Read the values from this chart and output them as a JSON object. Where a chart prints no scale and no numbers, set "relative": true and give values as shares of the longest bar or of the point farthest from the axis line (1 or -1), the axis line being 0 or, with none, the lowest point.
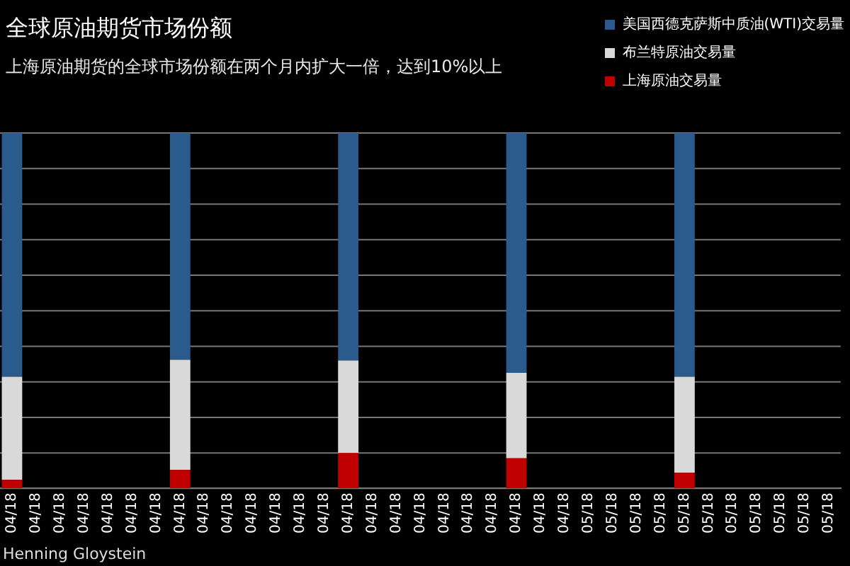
{
  "chart_data": {
    "type": "bar",
    "title": "全球原油期货市场份额",
    "subtitle": "上海原油期货的全球市场份额在两个月内扩大一倍，达到10%以上",
    "stacked": true,
    "relative": true,
    "grid": "y",
    "legend": "top right",
    "annotations": [
      "Henning Gloystein"
    ],
    "categories": [
      "04/18",
      "04/18",
      "04/18",
      "04/18",
      "04/18",
      "04/18",
      "04/18",
      "04/18",
      "04/18",
      "04/18",
      "04/18",
      "04/18",
      "04/18",
      "04/18",
      "04/18",
      "04/18",
      "04/18",
      "04/18",
      "04/18",
      "04/18",
      "04/18",
      "04/18",
      "04/18",
      "04/18",
      "05/18",
      "05/18",
      "05/18",
      "05/18",
      "05/18",
      "05/18",
      "05/18",
      "05/18",
      "05/18",
      "05/18",
      "05/18"
    ],
    "series": [
      {
        "name": "上海原油交易量",
        "color": "#c00000",
        "values": [
          0.024,
          null,
          null,
          null,
          null,
          null,
          null,
          0.052,
          null,
          null,
          null,
          null,
          null,
          null,
          0.1,
          null,
          null,
          null,
          null,
          null,
          null,
          0.085,
          null,
          null,
          null,
          null,
          null,
          null,
          0.044,
          null,
          null,
          null,
          null,
          null,
          null
        ]
      },
      {
        "name": "布兰特原油交易量",
        "color": "#d9d9d9",
        "values": [
          0.29,
          null,
          null,
          null,
          null,
          null,
          null,
          0.31,
          null,
          null,
          null,
          null,
          null,
          null,
          0.26,
          null,
          null,
          null,
          null,
          null,
          null,
          0.24,
          null,
          null,
          null,
          null,
          null,
          null,
          0.27,
          null,
          null,
          null,
          null,
          null,
          null
        ]
      },
      {
        "name": "美国西德克萨斯中质油(WTI)交易量",
        "color": "#2b5b8c",
        "values": [
          0.686,
          null,
          null,
          null,
          null,
          null,
          null,
          0.638,
          null,
          null,
          null,
          null,
          null,
          null,
          0.64,
          null,
          null,
          null,
          null,
          null,
          null,
          0.675,
          null,
          null,
          null,
          null,
          null,
          null,
          0.686,
          null,
          null,
          null,
          null,
          null,
          null
        ]
      }
    ]
  }
}
